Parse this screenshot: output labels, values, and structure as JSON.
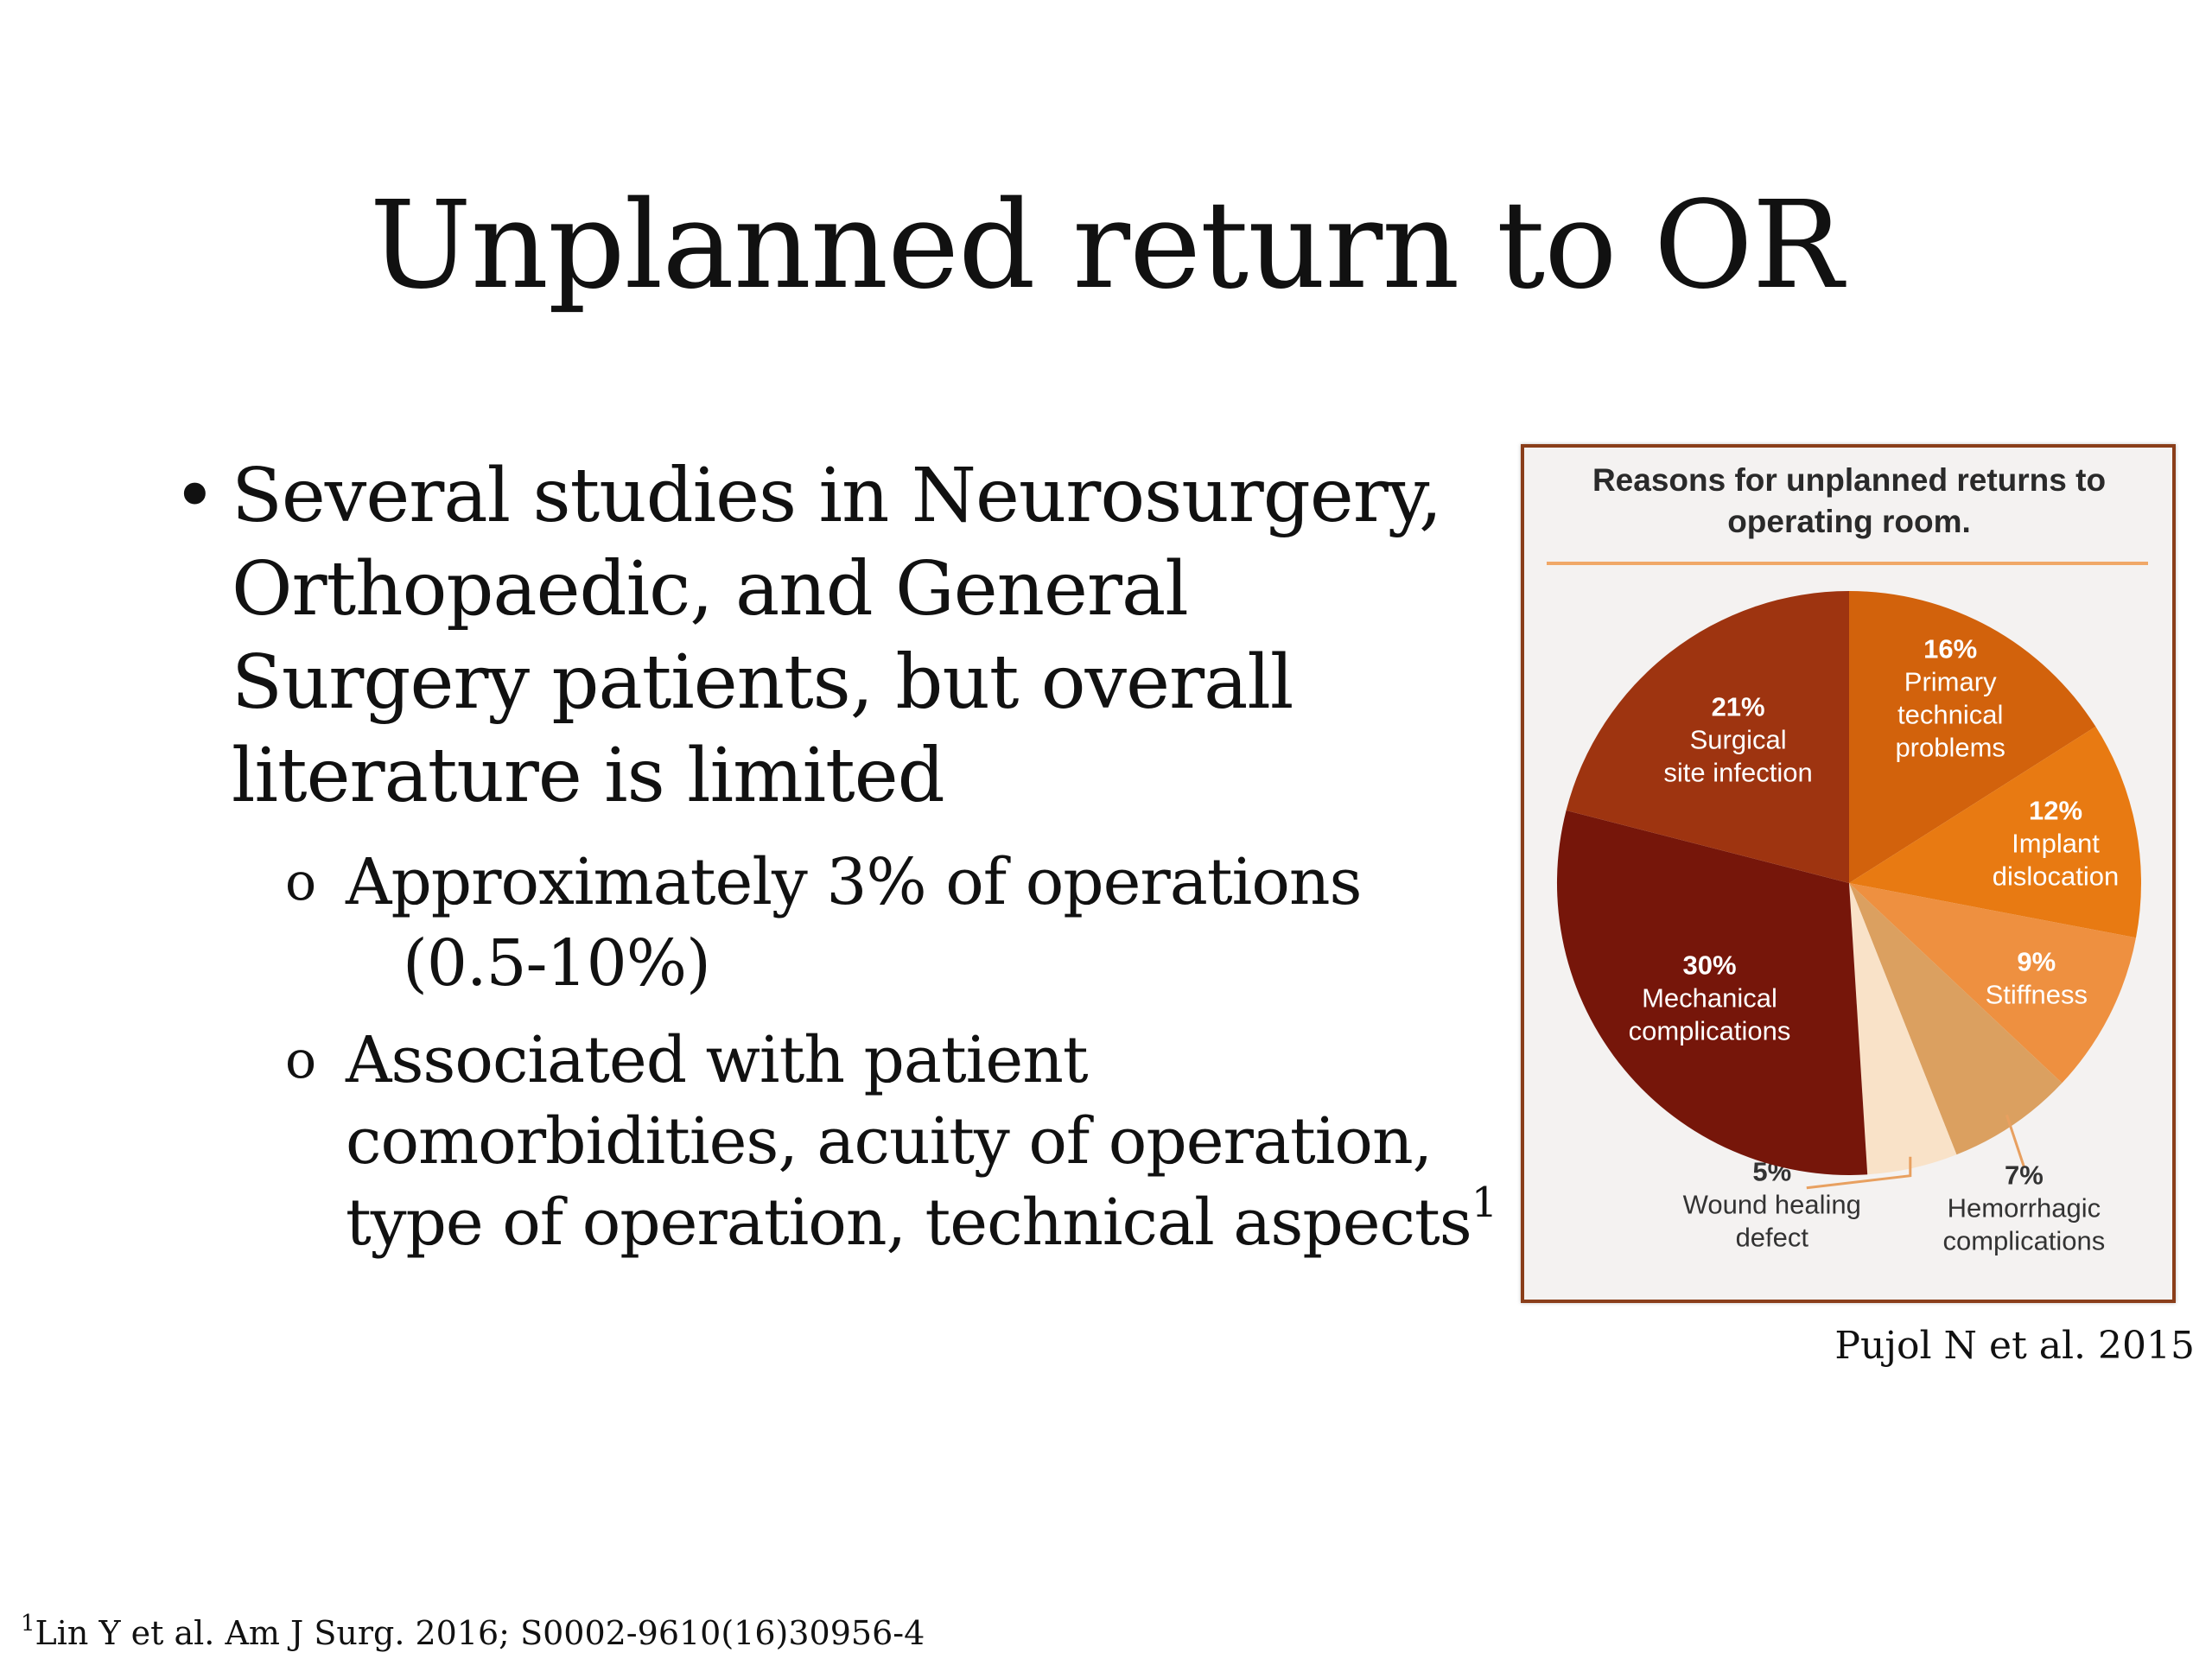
{
  "slide": {
    "title": "Unplanned return to OR",
    "bullet1": "Several studies in Neurosurgery, Orthopaedic, and General Surgery patients, but overall literature is limited",
    "sub1_line1": "Approximately 3% of operations",
    "sub1_line2": "(0.5-10%)",
    "sub2_line1": "Associated with patient",
    "sub2_line2": "comorbidities, acuity of operation,",
    "sub2_line3": "type of operation, technical aspects",
    "sub2_sup": "1",
    "caption": "Pujol N et al. 2015",
    "footnote_sup": "1",
    "footnote": "Lin Y et al. Am J Surg. 2016; S0002-9610(16)30956-4"
  },
  "chart_data": {
    "type": "pie",
    "title": "Reasons for unplanned returns to operating room.",
    "unit": "%",
    "slices": [
      {
        "label": "Primary technical problems",
        "value": 16,
        "color": "#d2620c"
      },
      {
        "label": "Implant dislocation",
        "value": 12,
        "color": "#e87a12"
      },
      {
        "label": "Stiffness",
        "value": 9,
        "color": "#ee9040"
      },
      {
        "label": "Hemorrhagic complications",
        "value": 7,
        "color": "#dba060"
      },
      {
        "label": "Wound healing defect",
        "value": 5,
        "color": "#f9e2c8"
      },
      {
        "label": "Mechanical complications",
        "value": 30,
        "color": "#76160a"
      },
      {
        "label": "Surgical site infection",
        "value": 21,
        "color": "#9e3410"
      }
    ],
    "accent_colors": {
      "frame": "#8a3e1a",
      "rule": "#f0a868",
      "leader": "#e8a060"
    }
  }
}
